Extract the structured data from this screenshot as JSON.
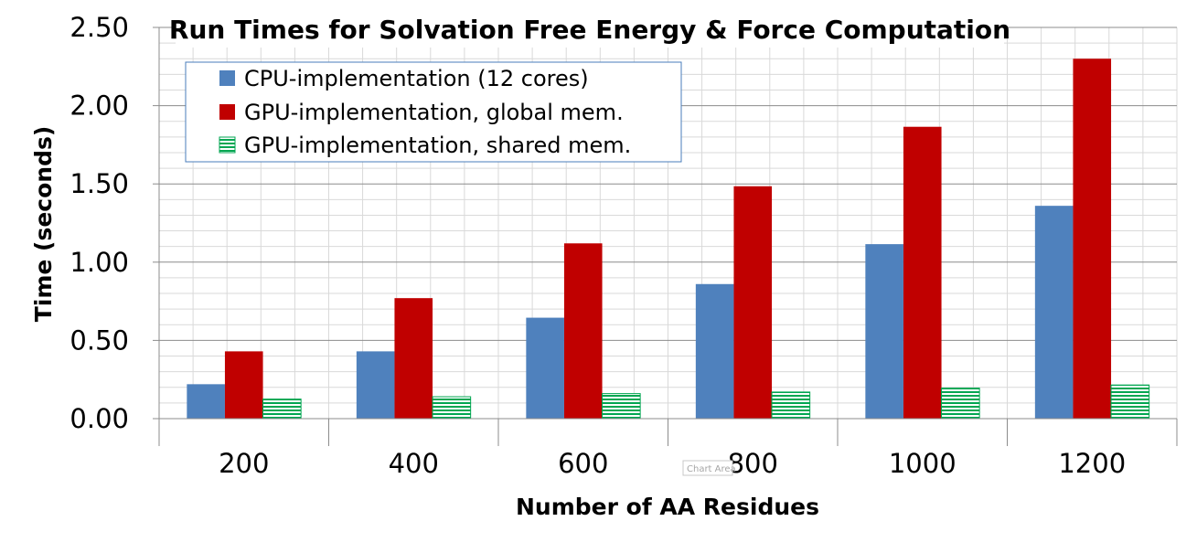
{
  "chart_data": {
    "type": "bar",
    "title": "Run Times for Solvation Free Energy & Force Computation",
    "xlabel": "Number of AA Residues",
    "ylabel": "Time (seconds)",
    "categories": [
      "200",
      "400",
      "600",
      "800",
      "1000",
      "1200"
    ],
    "ylim": [
      0,
      2.5
    ],
    "yticks": [
      "0.00",
      "0.50",
      "1.00",
      "1.50",
      "2.00",
      "2.50"
    ],
    "grid": "on",
    "legend_position": "top-left",
    "series": [
      {
        "name": "CPU-implementation (12 cores)",
        "color": "#4F81BD",
        "pattern": "solid",
        "values": [
          0.22,
          0.43,
          0.645,
          0.86,
          1.115,
          1.36
        ]
      },
      {
        "name": "GPU-implementation, global mem.",
        "color": "#C00000",
        "pattern": "solid",
        "values": [
          0.43,
          0.77,
          1.12,
          1.485,
          1.865,
          2.3
        ]
      },
      {
        "name": "GPU-implementation, shared mem.",
        "color": "#00A651",
        "pattern": "horizontal-stripes",
        "values": [
          0.125,
          0.14,
          0.16,
          0.17,
          0.195,
          0.215
        ]
      }
    ]
  },
  "tooltip": {
    "text": "Chart Area"
  }
}
